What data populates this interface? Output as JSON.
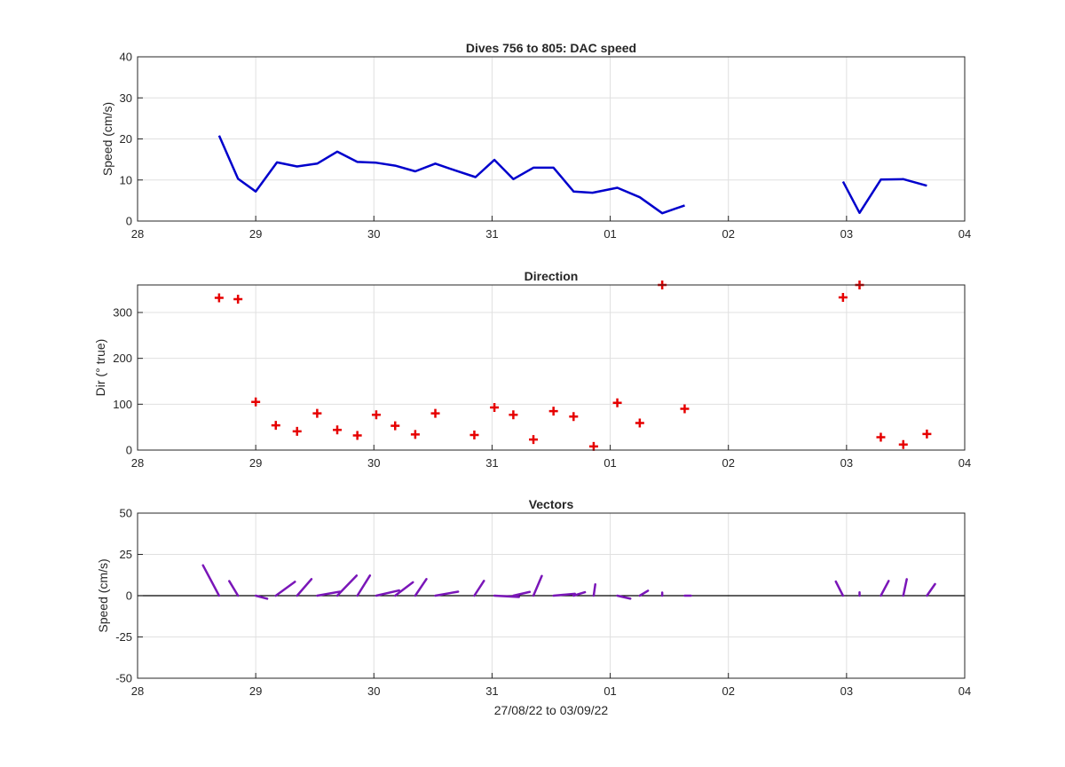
{
  "figure": {
    "xlabel": "27/08/22 to 03/09/22",
    "x_ticks": [
      "28",
      "29",
      "30",
      "31",
      "01",
      "02",
      "03",
      "04"
    ],
    "x_range_days": [
      0,
      7
    ]
  },
  "panels": [
    {
      "title": "Dives 756 to 805: DAC speed",
      "ylabel": "Speed (cm/s)",
      "ylim": [
        0,
        40
      ],
      "y_ticks": [
        0,
        10,
        20,
        30,
        40
      ]
    },
    {
      "title": "Direction",
      "ylabel": "Dir (° true)",
      "ylim": [
        0,
        360
      ],
      "y_ticks": [
        0,
        100,
        200,
        300
      ]
    },
    {
      "title": "Vectors",
      "ylabel": "Speed (cm/s)",
      "ylim": [
        -50,
        50
      ],
      "y_ticks": [
        -50,
        -25,
        0,
        25,
        50
      ]
    }
  ],
  "colors": {
    "speed_line": "#0000cc",
    "direction_marker": "#e60000",
    "vectors": "#7a16b8",
    "grid": "#e0e0e0",
    "axes": "#262626"
  },
  "chart_data": [
    {
      "type": "line",
      "title": "Dives 756 to 805: DAC speed",
      "ylabel": "Speed (cm/s)",
      "xlabel": "",
      "ylim": [
        0,
        40
      ],
      "grid": true,
      "series": [
        {
          "segments": [
            [
              [
                0.69,
                20.8
              ],
              [
                0.85,
                10.3
              ],
              [
                1.0,
                7.2
              ],
              [
                1.18,
                14.3
              ],
              [
                1.35,
                13.3
              ],
              [
                1.52,
                14.0
              ],
              [
                1.69,
                16.9
              ],
              [
                1.86,
                14.4
              ],
              [
                2.02,
                14.2
              ],
              [
                2.18,
                13.5
              ],
              [
                2.35,
                12.1
              ],
              [
                2.52,
                14.0
              ],
              [
                2.69,
                12.3
              ],
              [
                2.86,
                10.7
              ],
              [
                3.02,
                14.9
              ],
              [
                3.18,
                10.2
              ],
              [
                3.35,
                13.0
              ],
              [
                3.52,
                13.0
              ],
              [
                3.69,
                7.2
              ],
              [
                3.85,
                6.9
              ],
              [
                4.06,
                8.1
              ],
              [
                4.25,
                5.8
              ],
              [
                4.44,
                1.9
              ],
              [
                4.63,
                3.8
              ]
            ],
            [
              [
                5.97,
                9.6
              ],
              [
                6.11,
                2.0
              ],
              [
                6.29,
                10.1
              ],
              [
                6.48,
                10.2
              ],
              [
                6.68,
                8.6
              ]
            ]
          ]
        }
      ]
    },
    {
      "type": "scatter",
      "title": "Direction",
      "ylabel": "Dir (° true)",
      "xlabel": "",
      "ylim": [
        0,
        360
      ],
      "grid": true,
      "marker": "+",
      "points": [
        [
          0.69,
          332
        ],
        [
          0.85,
          329
        ],
        [
          1.0,
          105
        ],
        [
          1.17,
          54
        ],
        [
          1.35,
          41
        ],
        [
          1.52,
          80
        ],
        [
          1.69,
          44
        ],
        [
          1.86,
          32
        ],
        [
          2.02,
          77
        ],
        [
          2.18,
          53
        ],
        [
          2.35,
          34
        ],
        [
          2.52,
          80
        ],
        [
          2.85,
          33
        ],
        [
          3.02,
          93
        ],
        [
          3.18,
          77
        ],
        [
          3.35,
          23
        ],
        [
          3.52,
          85
        ],
        [
          3.69,
          73
        ],
        [
          3.86,
          8
        ],
        [
          4.06,
          103
        ],
        [
          4.25,
          59
        ],
        [
          4.44,
          360
        ],
        [
          4.63,
          90
        ],
        [
          5.97,
          333
        ],
        [
          6.11,
          360
        ],
        [
          6.29,
          28
        ],
        [
          6.48,
          12
        ],
        [
          6.68,
          35
        ]
      ]
    },
    {
      "type": "scatter",
      "title": "Vectors",
      "ylabel": "Speed (cm/s)",
      "xlabel": "27/08/22 to 03/09/22",
      "ylim": [
        -50,
        50
      ],
      "grid": true,
      "note_kind": "vector-stick",
      "vectors": [
        {
          "x": 0.69,
          "speed": 20.8,
          "dir": 332
        },
        {
          "x": 0.85,
          "speed": 10.3,
          "dir": 329
        },
        {
          "x": 1.0,
          "speed": 7.2,
          "dir": 105
        },
        {
          "x": 1.17,
          "speed": 14.3,
          "dir": 54
        },
        {
          "x": 1.35,
          "speed": 13.3,
          "dir": 41
        },
        {
          "x": 1.52,
          "speed": 14.0,
          "dir": 80
        },
        {
          "x": 1.69,
          "speed": 16.9,
          "dir": 44
        },
        {
          "x": 1.86,
          "speed": 14.4,
          "dir": 32
        },
        {
          "x": 2.02,
          "speed": 14.2,
          "dir": 77
        },
        {
          "x": 2.18,
          "speed": 13.5,
          "dir": 53
        },
        {
          "x": 2.35,
          "speed": 12.1,
          "dir": 34
        },
        {
          "x": 2.52,
          "speed": 14.0,
          "dir": 80
        },
        {
          "x": 2.85,
          "speed": 10.7,
          "dir": 33
        },
        {
          "x": 3.02,
          "speed": 14.9,
          "dir": 93
        },
        {
          "x": 3.18,
          "speed": 10.2,
          "dir": 77
        },
        {
          "x": 3.35,
          "speed": 13.0,
          "dir": 23
        },
        {
          "x": 3.52,
          "speed": 13.0,
          "dir": 85
        },
        {
          "x": 3.69,
          "speed": 7.2,
          "dir": 73
        },
        {
          "x": 3.86,
          "speed": 6.9,
          "dir": 8
        },
        {
          "x": 4.06,
          "speed": 8.1,
          "dir": 103
        },
        {
          "x": 4.25,
          "speed": 5.8,
          "dir": 59
        },
        {
          "x": 4.44,
          "speed": 1.9,
          "dir": 360
        },
        {
          "x": 4.63,
          "speed": 3.8,
          "dir": 90
        },
        {
          "x": 5.97,
          "speed": 9.6,
          "dir": 333
        },
        {
          "x": 6.11,
          "speed": 2.0,
          "dir": 360
        },
        {
          "x": 6.29,
          "speed": 10.1,
          "dir": 28
        },
        {
          "x": 6.48,
          "speed": 10.2,
          "dir": 12
        },
        {
          "x": 6.68,
          "speed": 8.6,
          "dir": 35
        }
      ]
    }
  ]
}
